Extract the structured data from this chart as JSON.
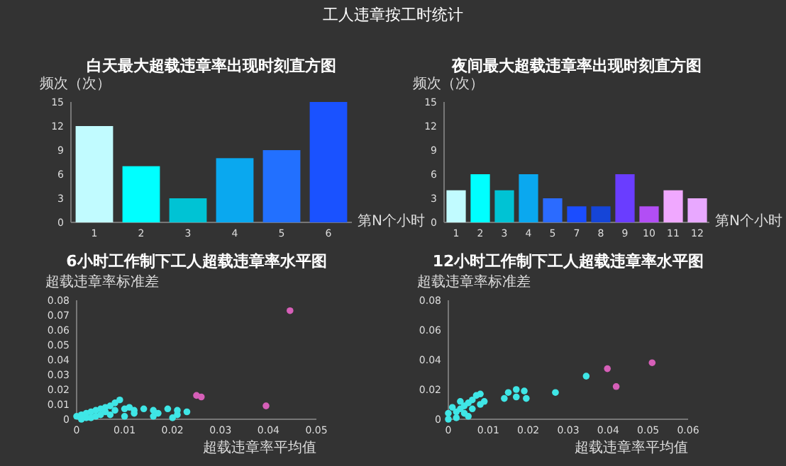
{
  "chart_data": [
    {
      "type": "other",
      "title": "工人违章按工时统计"
    },
    {
      "type": "bar",
      "title": "白天最大超载违章率出现时刻直方图",
      "ylabel": "频次（次）",
      "xlabel": "第N个小时",
      "categories": [
        "1",
        "2",
        "3",
        "4",
        "5",
        "6"
      ],
      "values": [
        12,
        7,
        3,
        8,
        9,
        15
      ],
      "colors": [
        "#c1fbff",
        "#00ffff",
        "#00c3d4",
        "#0aa8ef",
        "#2270ff",
        "#1a52ff"
      ],
      "ylim": [
        0,
        15
      ],
      "yticks": [
        0,
        3,
        6,
        9,
        12,
        15
      ]
    },
    {
      "type": "bar",
      "title": "夜间最大超载违章率出现时刻直方图",
      "ylabel": "频次（次）",
      "xlabel": "第N个小时",
      "categories": [
        "1",
        "2",
        "3",
        "4",
        "5",
        "7",
        "8",
        "9",
        "10",
        "11",
        "12"
      ],
      "values": [
        4,
        6,
        4,
        6,
        3,
        2,
        2,
        6,
        2,
        4,
        3
      ],
      "colors": [
        "#c1fbff",
        "#00ffff",
        "#00c3d4",
        "#0aa8ef",
        "#2b6bff",
        "#1b4dff",
        "#1545d8",
        "#6a3dff",
        "#b24ef5",
        "#f0a8ff",
        "#e8a8ff"
      ],
      "ylim": [
        0,
        15
      ],
      "yticks": [
        0,
        3,
        6,
        9,
        12,
        15
      ]
    },
    {
      "type": "scatter",
      "title": "6小时工作制下工人超载违章率水平图",
      "ylabel": "超载违章率标准差",
      "xlabel": "超载违章率平均值",
      "xlim": [
        0,
        0.05
      ],
      "xticks": [
        0,
        0.01,
        0.02,
        0.03,
        0.04,
        0.05
      ],
      "ylim": [
        0,
        0.08
      ],
      "yticks": [
        0,
        0.01,
        0.02,
        0.03,
        0.04,
        0.05,
        0.06,
        0.07,
        0.08
      ],
      "marker": "circle",
      "series": [
        {
          "color": "#3fe6e6",
          "x": [
            0,
            0.001,
            0.002,
            0.003,
            0.004,
            0.005,
            0.006,
            0.007,
            0.008,
            0.009,
            0.003,
            0.005,
            0.006,
            0.008,
            0.01,
            0.011,
            0.012,
            0.014,
            0.016,
            0.017,
            0.019,
            0.021,
            0.023,
            0.012,
            0.016,
            0.02,
            0.021,
            0.001,
            0.002,
            0.004,
            0.007,
            0.01
          ],
          "values": [
            0.002,
            0.003,
            0.004,
            0.005,
            0.006,
            0.007,
            0.008,
            0.009,
            0.011,
            0.013,
            0.001,
            0.003,
            0.005,
            0.006,
            0.007,
            0.008,
            0.006,
            0.007,
            0.006,
            0.004,
            0.007,
            0.006,
            0.005,
            0.004,
            0.002,
            0.001,
            0.003,
            0,
            0.001,
            0.002,
            0.003,
            0.002
          ]
        },
        {
          "color": "#d65fb8",
          "x": [
            0.0445,
            0.0395,
            0.025,
            0.026
          ],
          "values": [
            0.073,
            0.009,
            0.016,
            0.015
          ]
        }
      ]
    },
    {
      "type": "scatter",
      "title": "12小时工作制下工人超载违章率水平图",
      "ylabel": "超载违章率标准差",
      "xlabel": "超载违章率平均值",
      "xlim": [
        0,
        0.06
      ],
      "xticks": [
        0,
        0.01,
        0.02,
        0.03,
        0.04,
        0.05,
        0.06
      ],
      "ylim": [
        0,
        0.08
      ],
      "yticks": [
        0,
        0.02,
        0.04,
        0.06,
        0.08
      ],
      "marker": "circle",
      "series": [
        {
          "color": "#3fe6e6",
          "x": [
            0,
            0.002,
            0.003,
            0.004,
            0.005,
            0.006,
            0.007,
            0.008,
            0.002,
            0.004,
            0.006,
            0.008,
            0.009,
            0.005,
            0.003,
            0.014,
            0.017,
            0.0195,
            0.015,
            0.017,
            0.019,
            0.0268,
            0.0345,
            0.001,
            0
          ],
          "values": [
            0,
            0.005,
            0.007,
            0.009,
            0.011,
            0.013,
            0.016,
            0.017,
            0.001,
            0.004,
            0.007,
            0.01,
            0.012,
            0.002,
            0.012,
            0.014,
            0.015,
            0.014,
            0.018,
            0.02,
            0.019,
            0.018,
            0.029,
            0.008,
            0.004
          ]
        },
        {
          "color": "#d65fb8",
          "x": [
            0.051,
            0.0398,
            0.042
          ],
          "values": [
            0.038,
            0.034,
            0.022
          ]
        }
      ]
    }
  ]
}
